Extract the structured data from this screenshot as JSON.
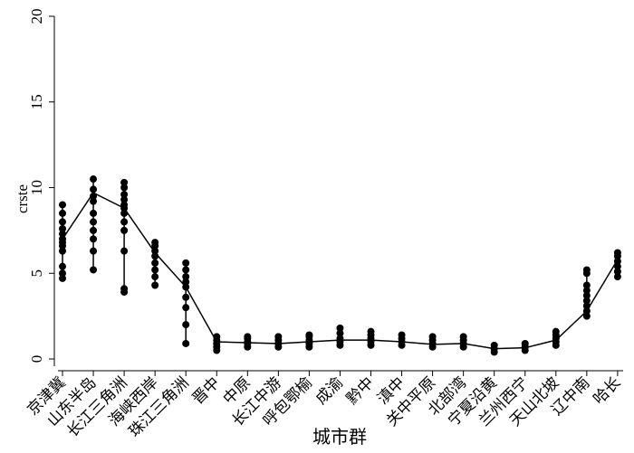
{
  "chart_data": {
    "type": "range_dot",
    "ylabel": "crste",
    "xlabel": "城市群",
    "categories": [
      "京津冀",
      "山东半岛",
      "长江三角洲",
      "海峡西岸",
      "珠江三角洲",
      "晋中",
      "中原",
      "长江中游",
      "呼包鄂榆",
      "成渝",
      "黔中",
      "滇中",
      "关中平原",
      "北部湾",
      "宁夏沿黄",
      "兰州西宁",
      "天山北坡",
      "辽中南",
      "哈长"
    ],
    "points": [
      [
        4.7,
        5.0,
        5.4,
        6.3,
        6.6,
        6.8,
        7.0,
        7.3,
        7.6,
        8.0,
        8.5,
        9.0
      ],
      [
        5.2,
        6.3,
        7.0,
        7.5,
        8.0,
        8.5,
        9.2,
        9.5,
        9.9,
        10.5
      ],
      [
        3.9,
        4.1,
        6.3,
        7.5,
        8.0,
        8.5,
        8.8,
        9.0,
        9.3,
        9.6,
        10.0,
        10.3
      ],
      [
        4.3,
        4.8,
        5.2,
        5.6,
        6.0,
        6.3,
        6.6,
        6.8
      ],
      [
        0.9,
        2.0,
        3.0,
        3.6,
        4.2,
        4.5,
        4.8,
        5.2,
        5.6
      ],
      [
        0.5,
        0.7,
        0.9,
        1.1,
        1.3
      ],
      [
        0.7,
        0.9,
        1.0,
        1.2,
        1.3
      ],
      [
        0.7,
        0.9,
        1.1,
        1.3
      ],
      [
        0.7,
        0.9,
        1.1,
        1.3,
        1.4
      ],
      [
        0.8,
        1.0,
        1.2,
        1.5,
        1.8
      ],
      [
        0.8,
        1.0,
        1.2,
        1.4,
        1.6
      ],
      [
        0.8,
        1.0,
        1.2,
        1.4
      ],
      [
        0.7,
        0.9,
        1.1,
        1.3
      ],
      [
        0.7,
        0.9,
        1.1,
        1.3
      ],
      [
        0.4,
        0.6,
        0.8
      ],
      [
        0.5,
        0.7,
        0.9
      ],
      [
        0.8,
        1.0,
        1.2,
        1.4,
        1.6
      ],
      [
        2.5,
        2.8,
        3.1,
        3.4,
        3.7,
        4.0,
        4.3,
        5.0,
        5.2
      ],
      [
        4.8,
        5.1,
        5.4,
        5.7,
        6.0,
        6.2
      ]
    ],
    "line": [
      7.0,
      9.7,
      8.8,
      6.2,
      4.2,
      1.0,
      0.95,
      0.9,
      1.0,
      1.1,
      1.1,
      1.0,
      0.85,
      0.9,
      0.6,
      0.65,
      1.1,
      2.8,
      5.8
    ],
    "color": "#000000",
    "ylim": [
      0,
      20
    ],
    "yticks": [
      0,
      5,
      10,
      15,
      20
    ]
  }
}
